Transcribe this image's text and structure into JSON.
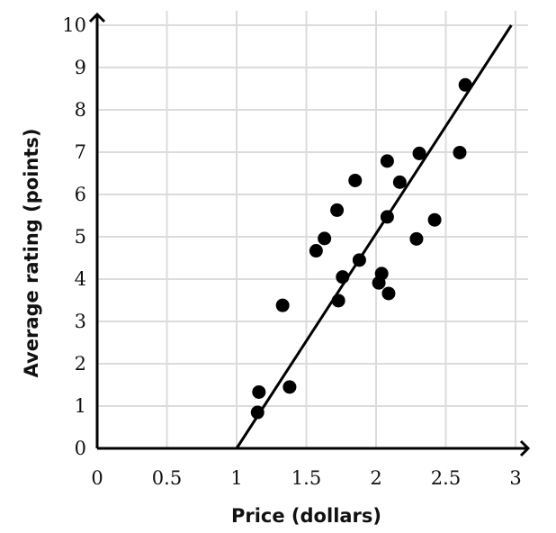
{
  "chart_data": {
    "type": "scatter",
    "xlabel": "Price (dollars)",
    "ylabel": "Average rating (points)",
    "xlim": [
      0,
      3
    ],
    "ylim": [
      0,
      10
    ],
    "x_ticks": [
      0,
      0.5,
      1,
      1.5,
      2,
      2.5,
      3
    ],
    "y_ticks": [
      0,
      1,
      2,
      3,
      4,
      5,
      6,
      7,
      8,
      9,
      10
    ],
    "x_tick_labels": [
      "0",
      "0.5",
      "1",
      "1.5",
      "2",
      "2.5",
      "3"
    ],
    "y_tick_labels": [
      "0",
      "1",
      "2",
      "3",
      "4",
      "5",
      "6",
      "7",
      "8",
      "9",
      "10"
    ],
    "grid": true,
    "points": [
      {
        "x": 1.15,
        "y": 0.85
      },
      {
        "x": 1.16,
        "y": 1.33
      },
      {
        "x": 1.38,
        "y": 1.45
      },
      {
        "x": 1.33,
        "y": 3.38
      },
      {
        "x": 1.57,
        "y": 4.67
      },
      {
        "x": 1.63,
        "y": 4.96
      },
      {
        "x": 1.73,
        "y": 3.49
      },
      {
        "x": 1.72,
        "y": 5.63
      },
      {
        "x": 1.76,
        "y": 4.05
      },
      {
        "x": 1.85,
        "y": 6.33
      },
      {
        "x": 1.88,
        "y": 4.45
      },
      {
        "x": 2.02,
        "y": 3.91
      },
      {
        "x": 2.04,
        "y": 4.13
      },
      {
        "x": 2.08,
        "y": 5.47
      },
      {
        "x": 2.08,
        "y": 6.79
      },
      {
        "x": 2.09,
        "y": 3.66
      },
      {
        "x": 2.17,
        "y": 6.29
      },
      {
        "x": 2.29,
        "y": 4.95
      },
      {
        "x": 2.31,
        "y": 6.97
      },
      {
        "x": 2.42,
        "y": 5.4
      },
      {
        "x": 2.6,
        "y": 6.99
      },
      {
        "x": 2.64,
        "y": 8.59
      }
    ],
    "fit_line": {
      "x": [
        1,
        2.97
      ],
      "y": [
        0,
        10
      ]
    }
  }
}
